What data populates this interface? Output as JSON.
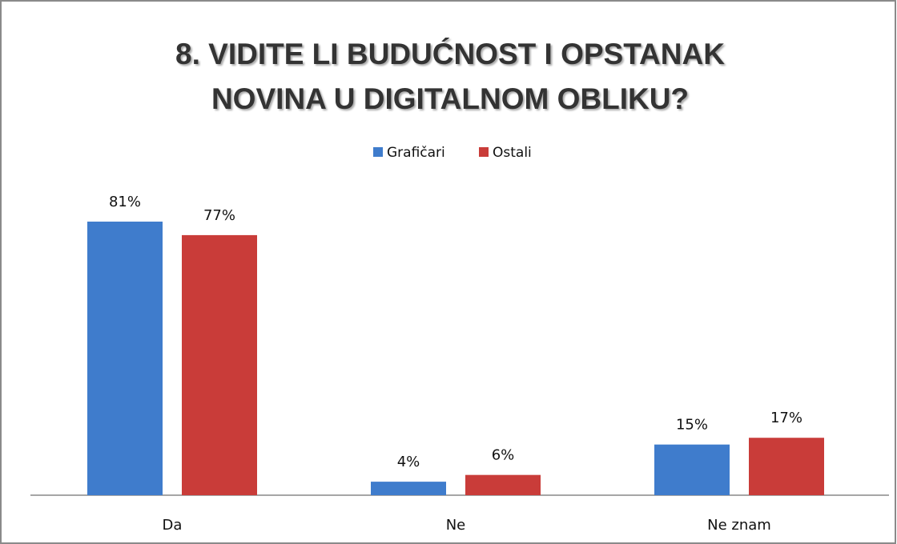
{
  "chart_data": {
    "type": "bar",
    "title": [
      "8. VIDITE LI BUDUĆNOST I OPSTANAK",
      "NOVINA U DIGITALNOM OBLIKU?"
    ],
    "categories": [
      "Da",
      "Ne",
      "Ne znam"
    ],
    "series": [
      {
        "name": "Grafičari",
        "color": "#3f7ccc",
        "values": [
          81,
          4,
          15
        ],
        "value_labels": [
          "81%",
          "4%",
          "15%"
        ]
      },
      {
        "name": "Ostali",
        "color": "#c93c39",
        "values": [
          77,
          6,
          17
        ],
        "value_labels": [
          "77%",
          "6%",
          "17%"
        ]
      }
    ],
    "legend": "top"
  }
}
